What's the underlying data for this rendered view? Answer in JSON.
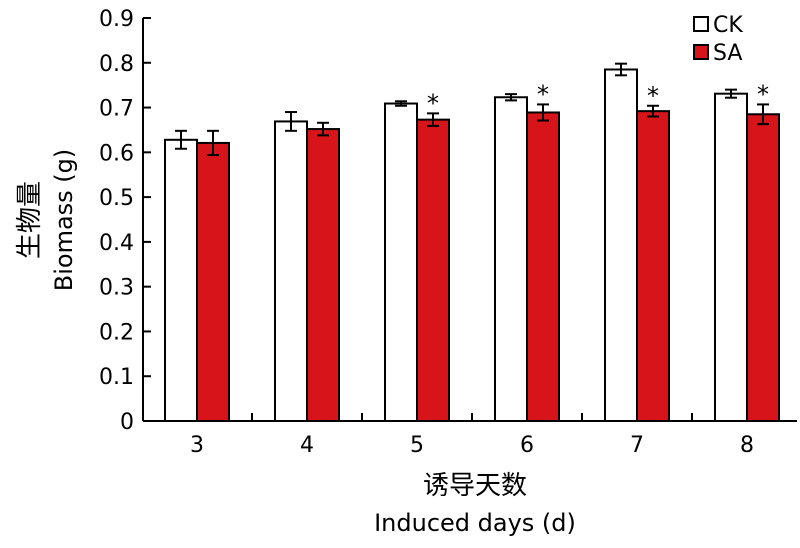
{
  "chart_data": {
    "type": "bar",
    "categories": [
      "3",
      "4",
      "5",
      "6",
      "7",
      "8"
    ],
    "series": [
      {
        "name": "CK",
        "color": "#ffffff",
        "values": [
          0.628,
          0.669,
          0.709,
          0.723,
          0.785,
          0.731
        ],
        "errors": [
          0.02,
          0.021,
          0.005,
          0.007,
          0.013,
          0.009
        ]
      },
      {
        "name": "SA",
        "color": "#d7141a",
        "values": [
          0.621,
          0.652,
          0.673,
          0.689,
          0.692,
          0.685
        ],
        "errors": [
          0.027,
          0.014,
          0.014,
          0.018,
          0.012,
          0.022
        ]
      }
    ],
    "significance": [
      "",
      "",
      "*",
      "*",
      "*",
      "*"
    ],
    "ylabel_cn": "生物量",
    "ylabel": "Biomass (g)",
    "xlabel_cn": "诱导天数",
    "xlabel": "Induced days (d)",
    "ylim": [
      0,
      0.9
    ],
    "yticks": [
      "0",
      "0.1",
      "0.2",
      "0.3",
      "0.4",
      "0.5",
      "0.6",
      "0.7",
      "0.8",
      "0.9"
    ],
    "legend_position": "top-right",
    "grid": false
  }
}
